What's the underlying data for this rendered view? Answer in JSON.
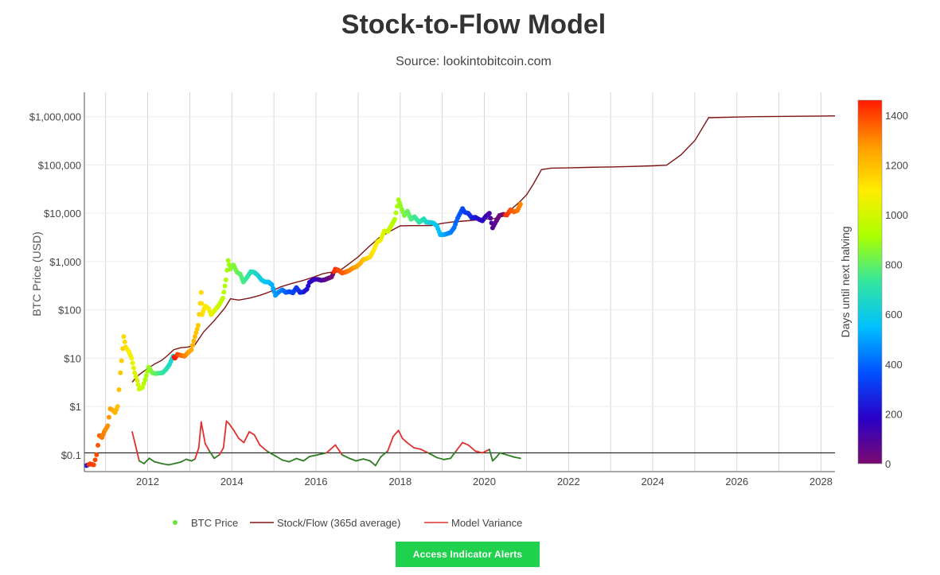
{
  "page": {
    "title": "Stock-to-Flow Model",
    "subtitle": "Source: lookintobitcoin.com",
    "button_label": "Access Indicator Alerts"
  },
  "colors": {
    "btc_price_legend": "#66e63c",
    "stock_flow": "#7f1414",
    "variance_positive": "#e03030",
    "variance_negative": "#2e7d22",
    "baseline": "#000000",
    "colorscale": [
      "#7a0a6e",
      "#2a00c8",
      "#0050ff",
      "#00c0ff",
      "#33e6a0",
      "#aaff00",
      "#ffee00",
      "#ff9a00",
      "#ff1a00"
    ]
  },
  "chart_data": {
    "type": "scatter",
    "xlabel": "",
    "ylabel": "BTC Price (USD)",
    "y_scale": "log",
    "xlim": [
      "2010-07-01",
      "2028-05-01"
    ],
    "ylim": [
      0.045,
      3200000
    ],
    "x_ticks": [
      "2012",
      "2014",
      "2016",
      "2018",
      "2020",
      "2022",
      "2024",
      "2026",
      "2028"
    ],
    "y_ticks": [
      {
        "value": 0.1,
        "label": "$0.1"
      },
      {
        "value": 1,
        "label": "$1"
      },
      {
        "value": 10,
        "label": "$10"
      },
      {
        "value": 100,
        "label": "$100"
      },
      {
        "value": 1000,
        "label": "$1,000"
      },
      {
        "value": 10000,
        "label": "$10,000"
      },
      {
        "value": 100000,
        "label": "$100,000"
      },
      {
        "value": 1000000,
        "label": "$1,000,000"
      }
    ],
    "grid": true,
    "legend_position": "bottom",
    "legend": [
      {
        "name": "BTC Price",
        "kind": "marker"
      },
      {
        "name": "Stock/Flow (365d average)",
        "kind": "line"
      },
      {
        "name": "Model Variance",
        "kind": "line"
      }
    ],
    "colorbar": {
      "title": "Days until next halving",
      "range": [
        0,
        1460
      ],
      "ticks": [
        0,
        200,
        400,
        600,
        800,
        1000,
        1200,
        1400
      ]
    },
    "series": [
      {
        "name": "BTC Price",
        "x": [
          "2010-07-18",
          "2010-08-20",
          "2010-09-20",
          "2010-10-15",
          "2010-11-08",
          "2010-12-01",
          "2010-12-20",
          "2011-01-20",
          "2011-02-10",
          "2011-03-01",
          "2011-03-25",
          "2011-04-15",
          "2011-05-10",
          "2011-06-08",
          "2011-06-25",
          "2011-07-20",
          "2011-08-15",
          "2011-09-10",
          "2011-10-01",
          "2011-10-20",
          "2011-11-18",
          "2011-12-10",
          "2012-01-10",
          "2012-02-10",
          "2012-03-10",
          "2012-04-10",
          "2012-05-10",
          "2012-06-10",
          "2012-07-10",
          "2012-08-10",
          "2012-08-25",
          "2012-09-15",
          "2012-10-15",
          "2012-11-15",
          "2012-12-15",
          "2013-01-15",
          "2013-02-15",
          "2013-03-15",
          "2013-04-10",
          "2013-04-17",
          "2013-05-15",
          "2013-06-15",
          "2013-07-05",
          "2013-08-15",
          "2013-09-15",
          "2013-10-15",
          "2013-11-10",
          "2013-11-30",
          "2013-12-18",
          "2014-01-15",
          "2014-02-15",
          "2014-03-15",
          "2014-04-11",
          "2014-05-15",
          "2014-06-15",
          "2014-07-15",
          "2014-08-15",
          "2014-09-15",
          "2014-10-15",
          "2014-11-15",
          "2014-12-15",
          "2015-01-14",
          "2015-02-15",
          "2015-03-15",
          "2015-04-15",
          "2015-05-15",
          "2015-06-15",
          "2015-07-15",
          "2015-08-15",
          "2015-09-15",
          "2015-10-15",
          "2015-11-05",
          "2015-12-15",
          "2016-01-15",
          "2016-02-15",
          "2016-03-15",
          "2016-04-15",
          "2016-05-15",
          "2016-06-17",
          "2016-07-15",
          "2016-08-15",
          "2016-09-15",
          "2016-10-15",
          "2016-11-15",
          "2016-12-15",
          "2017-01-15",
          "2017-02-15",
          "2017-03-15",
          "2017-04-15",
          "2017-05-15",
          "2017-06-15",
          "2017-07-15",
          "2017-08-15",
          "2017-09-15",
          "2017-10-15",
          "2017-11-15",
          "2017-12-17",
          "2018-01-15",
          "2018-02-06",
          "2018-03-05",
          "2018-04-05",
          "2018-05-05",
          "2018-06-15",
          "2018-07-25",
          "2018-08-15",
          "2018-09-15",
          "2018-10-15",
          "2018-11-15",
          "2018-12-15",
          "2019-01-15",
          "2019-02-15",
          "2019-03-15",
          "2019-04-15",
          "2019-05-15",
          "2019-06-26",
          "2019-07-15",
          "2019-08-15",
          "2019-09-15",
          "2019-10-15",
          "2019-11-15",
          "2019-12-15",
          "2020-01-15",
          "2020-02-14",
          "2020-03-13",
          "2020-04-15",
          "2020-05-11",
          "2020-06-15",
          "2020-07-15",
          "2020-08-15",
          "2020-09-15",
          "2020-10-15",
          "2020-11-10"
        ],
        "y": [
          0.06,
          0.065,
          0.062,
          0.1,
          0.25,
          0.23,
          0.3,
          0.4,
          0.9,
          0.85,
          0.75,
          1.0,
          5,
          28,
          17,
          14,
          10,
          5,
          3.5,
          2.3,
          2.5,
          3.6,
          6.5,
          5.0,
          4.8,
          4.9,
          5.0,
          5.9,
          7.5,
          11,
          10,
          12,
          11.5,
          11,
          13,
          15,
          28,
          48,
          230,
          80,
          120,
          105,
          80,
          105,
          130,
          175,
          420,
          1050,
          700,
          850,
          600,
          550,
          380,
          480,
          620,
          600,
          520,
          420,
          380,
          380,
          330,
          200,
          240,
          260,
          230,
          240,
          225,
          290,
          230,
          235,
          270,
          370,
          430,
          430,
          410,
          420,
          450,
          480,
          700,
          660,
          580,
          610,
          650,
          730,
          780,
          900,
          1100,
          1150,
          1250,
          1700,
          2500,
          2800,
          4300,
          4200,
          5500,
          7500,
          19000,
          12000,
          9000,
          11000,
          7500,
          8500,
          6500,
          7700,
          6500,
          6500,
          6300,
          5500,
          3600,
          3600,
          3800,
          4000,
          5100,
          8000,
          12500,
          10500,
          10000,
          8000,
          8300,
          7500,
          7000,
          8700,
          10000,
          5000,
          7000,
          9000,
          9500,
          9200,
          11800,
          10700,
          11500,
          15500
        ],
        "colors": [
          240,
          1420,
          1400,
          1380,
          1360,
          1330,
          1310,
          1290,
          1260,
          1240,
          1220,
          1200,
          1180,
          1140,
          1130,
          1090,
          1060,
          1030,
          1010,
          990,
          960,
          920,
          880,
          840,
          800,
          760,
          730,
          700,
          670,
          630,
          1520,
          1400,
          1360,
          1320,
          1280,
          1240,
          1200,
          1170,
          1140,
          1130,
          1100,
          1070,
          1050,
          1010,
          980,
          950,
          920,
          900,
          880,
          850,
          820,
          790,
          760,
          730,
          700,
          670,
          640,
          610,
          580,
          550,
          520,
          490,
          460,
          430,
          400,
          370,
          340,
          310,
          280,
          250,
          220,
          200,
          170,
          140,
          110,
          80,
          50,
          20,
          1430,
          1400,
          1380,
          1350,
          1320,
          1290,
          1260,
          1230,
          1200,
          1170,
          1140,
          1110,
          1080,
          1050,
          1020,
          990,
          960,
          930,
          900,
          860,
          840,
          810,
          780,
          750,
          720,
          680,
          660,
          630,
          600,
          570,
          540,
          510,
          480,
          450,
          420,
          390,
          350,
          330,
          300,
          270,
          240,
          210,
          180,
          150,
          120,
          90,
          60,
          30,
          0,
          1420,
          1390,
          1360,
          1330,
          1300,
          1270,
          1240,
          1210
        ],
        "marker_size": 5
      },
      {
        "name": "Stock/Flow (365d average)",
        "x": [
          "2011-08-20",
          "2011-10-01",
          "2011-11-20",
          "2012-01-10",
          "2012-03-01",
          "2012-05-01",
          "2012-06-15",
          "2012-08-15",
          "2012-10-15",
          "2012-12-15",
          "2013-02-15",
          "2013-05-01",
          "2013-08-01",
          "2013-11-01",
          "2013-12-20",
          "2014-03-01",
          "2014-06-01",
          "2014-09-01",
          "2014-12-01",
          "2015-03-01",
          "2015-06-01",
          "2015-09-01",
          "2015-12-01",
          "2016-03-01",
          "2016-05-01",
          "2016-07-09",
          "2016-10-01",
          "2017-01-01",
          "2017-04-01",
          "2017-07-01",
          "2017-10-01",
          "2017-12-31",
          "2018-04-01",
          "2018-07-01",
          "2018-10-01",
          "2019-01-01",
          "2019-04-01",
          "2019-07-01",
          "2019-10-01",
          "2020-01-01",
          "2020-03-15",
          "2020-05-11",
          "2020-08-01",
          "2020-11-01",
          "2021-01-01",
          "2021-03-01",
          "2021-05-11",
          "2021-08-01",
          "2022-01-01",
          "2022-06-01",
          "2023-01-01",
          "2023-06-01",
          "2024-01-01",
          "2024-05-01",
          "2024-09-01",
          "2025-01-01",
          "2025-05-01",
          "2026-01-01",
          "2026-06-01",
          "2027-01-01",
          "2027-06-01",
          "2028-01-01",
          "2028-05-01"
        ],
        "y": [
          3.2,
          4.2,
          5.2,
          6.3,
          7.6,
          9,
          11,
          15,
          16.5,
          17,
          19,
          35,
          60,
          110,
          170,
          160,
          175,
          200,
          240,
          300,
          350,
          400,
          470,
          560,
          600,
          610,
          850,
          1250,
          2000,
          3100,
          4200,
          5500,
          5550,
          5550,
          5600,
          6200,
          6600,
          6900,
          7200,
          7600,
          7700,
          8200,
          11000,
          17000,
          24000,
          40000,
          80000,
          86000,
          87000,
          89000,
          91000,
          93000,
          96000,
          99000,
          160000,
          320000,
          950000,
          980000,
          1000000,
          1010000,
          1020000,
          1030000,
          1040000
        ]
      },
      {
        "name": "Model Variance",
        "x": [
          "2010-07-18",
          "2010-08-20",
          "2011-08-20",
          "2011-09-20",
          "2011-10-20",
          "2011-12-01",
          "2012-01-15",
          "2012-03-01",
          "2012-05-01",
          "2012-07-01",
          "2012-09-01",
          "2012-10-15",
          "2012-12-01",
          "2013-01-15",
          "2013-02-15",
          "2013-03-20",
          "2013-04-10",
          "2013-05-15",
          "2013-06-20",
          "2013-08-01",
          "2013-09-15",
          "2013-10-20",
          "2013-11-15",
          "2013-12-05",
          "2014-01-15",
          "2014-03-01",
          "2014-04-15",
          "2014-06-01",
          "2014-07-15",
          "2014-09-01",
          "2014-11-01",
          "2015-01-14",
          "2015-03-15",
          "2015-05-15",
          "2015-07-15",
          "2015-09-15",
          "2015-11-05",
          "2016-01-15",
          "2016-04-01",
          "2016-06-17",
          "2016-08-15",
          "2016-10-15",
          "2016-12-15",
          "2017-02-15",
          "2017-04-15",
          "2017-06-01",
          "2017-07-15",
          "2017-09-15",
          "2017-11-01",
          "2017-12-17",
          "2018-01-20",
          "2018-03-01",
          "2018-05-01",
          "2018-07-01",
          "2018-09-01",
          "2018-11-15",
          "2019-01-15",
          "2019-03-15",
          "2019-05-01",
          "2019-06-26",
          "2019-08-15",
          "2019-10-15",
          "2019-12-15",
          "2020-02-14",
          "2020-03-13",
          "2020-04-15",
          "2020-05-15",
          "2020-07-15",
          "2020-09-15",
          "2020-11-10"
        ],
        "y": [
          0.062,
          0.06,
          0.3,
          0.15,
          0.075,
          0.066,
          0.085,
          0.072,
          0.066,
          0.062,
          0.067,
          0.071,
          0.081,
          0.075,
          0.082,
          0.14,
          0.48,
          0.17,
          0.12,
          0.085,
          0.1,
          0.14,
          0.5,
          0.45,
          0.33,
          0.22,
          0.18,
          0.3,
          0.26,
          0.16,
          0.12,
          0.095,
          0.078,
          0.072,
          0.084,
          0.075,
          0.092,
          0.1,
          0.11,
          0.16,
          0.1,
          0.085,
          0.075,
          0.082,
          0.075,
          0.06,
          0.09,
          0.12,
          0.24,
          0.32,
          0.22,
          0.18,
          0.14,
          0.13,
          0.11,
          0.088,
          0.08,
          0.085,
          0.12,
          0.18,
          0.16,
          0.12,
          0.11,
          0.13,
          0.075,
          0.09,
          0.11,
          0.1,
          0.09,
          0.085
        ]
      }
    ],
    "variance_baseline": 0.11
  }
}
